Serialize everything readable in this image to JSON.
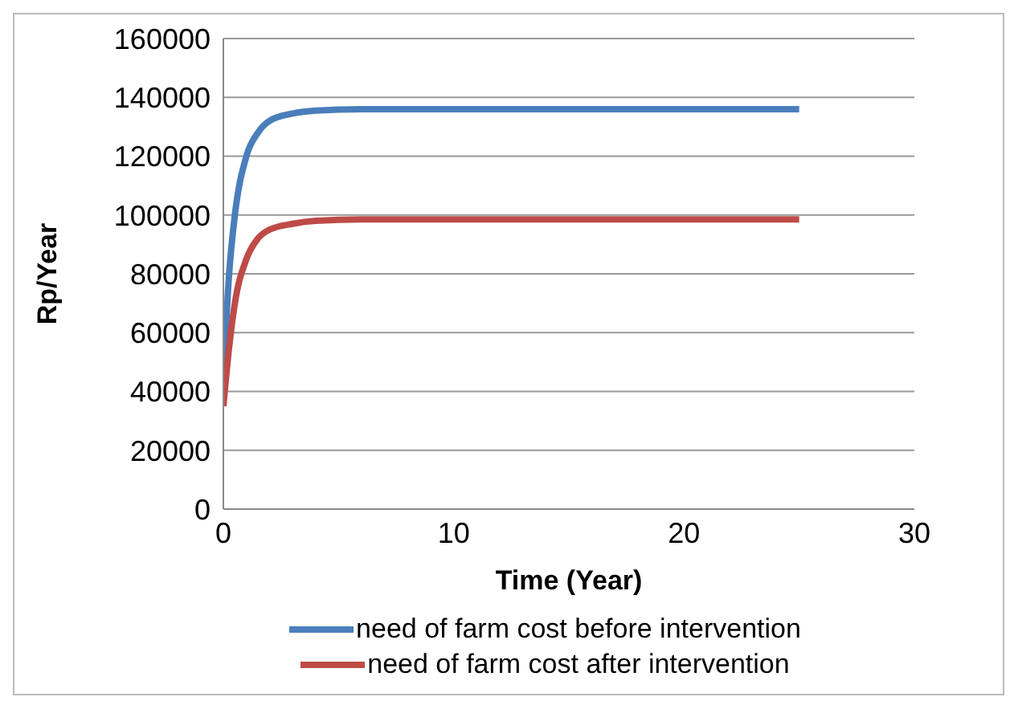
{
  "chart_data": {
    "type": "line",
    "xlabel": "Time (Year)",
    "ylabel": "Rp/Year",
    "x": [
      0,
      0.25,
      0.5,
      1,
      1.5,
      2,
      3,
      4,
      6,
      10,
      25
    ],
    "series": [
      {
        "name": "need of farm cost before intervention",
        "color": "#4a7ebb",
        "values": [
          45000,
          80000,
          100000,
          120000,
          128000,
          132000,
          134500,
          135500,
          136000,
          136000,
          136000
        ]
      },
      {
        "name": "need of farm cost after intervention",
        "color": "#be4b48",
        "values": [
          35000,
          55000,
          70000,
          85000,
          92000,
          95000,
          97000,
          98000,
          98500,
          98500,
          98500
        ]
      }
    ],
    "xlim": [
      0,
      30
    ],
    "xticks": [
      0,
      10,
      20,
      30
    ],
    "ylim": [
      0,
      160000
    ],
    "yticks": [
      0,
      20000,
      40000,
      60000,
      80000,
      100000,
      120000,
      140000,
      160000
    ],
    "grid": "y",
    "legend": "bottom",
    "marker": "none",
    "line_style": "solid"
  }
}
